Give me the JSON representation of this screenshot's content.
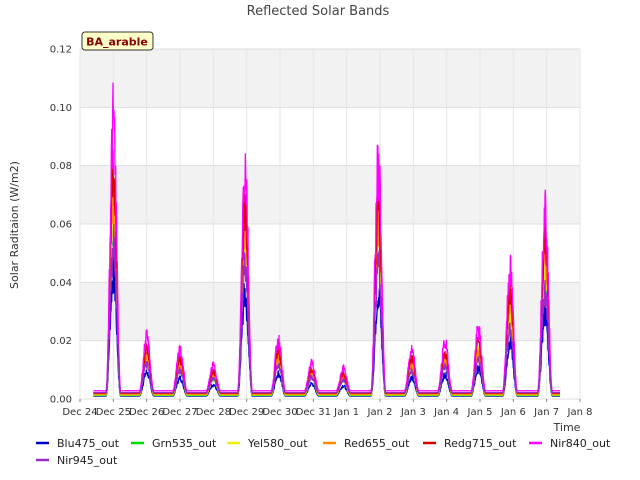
{
  "chart_data": {
    "type": "line",
    "title": "Reflected Solar Bands",
    "ylabel": "Solar Raditaion (W/m2)",
    "xlabel": "Time",
    "badge": "BA_arable",
    "ylim": [
      0,
      0.12
    ],
    "yticks": [
      0.0,
      0.02,
      0.04,
      0.06,
      0.08,
      0.1,
      0.12
    ],
    "ytick_labels": [
      "0.00",
      "0.02",
      "0.04",
      "0.06",
      "0.08",
      "0.10",
      "0.12"
    ],
    "xlim": [
      0,
      15
    ],
    "xticks": [
      0,
      1,
      2,
      3,
      4,
      5,
      6,
      7,
      8,
      9,
      10,
      11,
      12,
      13,
      14,
      15
    ],
    "xtick_labels": [
      "Dec 24",
      "Dec 25",
      "Dec 26",
      "Dec 27",
      "Dec 28",
      "Dec 29",
      "Dec 30",
      "Dec 31",
      "Jan 1",
      "Jan 2",
      "Jan 3",
      "Jan 4",
      "Jan 5",
      "Jan 6",
      "Jan 7",
      "Jan 8"
    ],
    "x_start": 0.4,
    "x_end": 14.4,
    "daily_peaks": [
      {
        "day": 1.0,
        "value": 0.107
      },
      {
        "day": 2.0,
        "value": 0.021
      },
      {
        "day": 3.0,
        "value": 0.016
      },
      {
        "day": 4.0,
        "value": 0.01
      },
      {
        "day": 4.95,
        "value": 0.09
      },
      {
        "day": 5.95,
        "value": 0.02
      },
      {
        "day": 6.95,
        "value": 0.011
      },
      {
        "day": 7.9,
        "value": 0.009
      },
      {
        "day": 8.95,
        "value": 0.09
      },
      {
        "day": 9.95,
        "value": 0.016
      },
      {
        "day": 10.95,
        "value": 0.019
      },
      {
        "day": 11.95,
        "value": 0.024
      },
      {
        "day": 12.9,
        "value": 0.048
      },
      {
        "day": 13.95,
        "value": 0.073
      }
    ],
    "series": [
      {
        "name": "Blu475_out",
        "color": "#0000cc",
        "scale": 0.45,
        "baseline": 0.001
      },
      {
        "name": "Grn535_out",
        "color": "#00dd00",
        "scale": 0.7,
        "baseline": 0.0012
      },
      {
        "name": "Yel580_out",
        "color": "#eeee00",
        "scale": 0.72,
        "baseline": 0.0014
      },
      {
        "name": "Red655_out",
        "color": "#ff8c00",
        "scale": 0.75,
        "baseline": 0.0016
      },
      {
        "name": "Redg715_out",
        "color": "#dd0000",
        "scale": 0.85,
        "baseline": 0.002
      },
      {
        "name": "Nir840_out",
        "color": "#ff00ff",
        "scale": 1.0,
        "baseline": 0.0028
      },
      {
        "name": "Nir945_out",
        "color": "#9a2cc8",
        "scale": 0.55,
        "baseline": 0.0022
      }
    ],
    "grid": true,
    "legend": "bottom"
  }
}
